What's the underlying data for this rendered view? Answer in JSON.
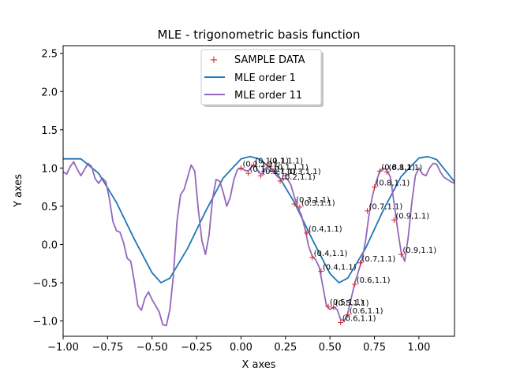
{
  "chart_data": {
    "type": "scatter",
    "title": "MLE - trigonometric basis function",
    "xlabel": "X axes",
    "ylabel": "Y axes",
    "xlim": [
      -1.0,
      1.2
    ],
    "ylim": [
      -1.2,
      2.6
    ],
    "xticks": [
      "−1.00",
      "−0.75",
      "−0.50",
      "−0.25",
      "0.00",
      "0.25",
      "0.50",
      "0.75",
      "1.00"
    ],
    "yticks": [
      "−1.0",
      "−0.5",
      "0.0",
      "0.5",
      "1.0",
      "1.5",
      "2.0",
      "2.5"
    ],
    "legend_position": "top-center",
    "legend": [
      "SAMPLE DATA",
      "MLE order 1",
      "MLE order 11"
    ],
    "colors": {
      "sample": "#d62728",
      "order1": "#1f77b4",
      "order11": "#9467bd"
    },
    "series": [
      {
        "name": "SAMPLE DATA",
        "points": [
          {
            "x": 0.0,
            "y": 1.0,
            "label": "(0.1,1.1)"
          },
          {
            "x": 0.04,
            "y": 0.93,
            "label": "(0.1,1.1)"
          },
          {
            "x": 0.07,
            "y": 1.04,
            "label": "(0.1,1.1)"
          },
          {
            "x": 0.11,
            "y": 0.9,
            "label": "(0.1,1.1)"
          },
          {
            "x": 0.15,
            "y": 1.04,
            "label": "(0.1,1.1)"
          },
          {
            "x": 0.18,
            "y": 0.96,
            "label": "(0.1,1.1)"
          },
          {
            "x": 0.22,
            "y": 0.83,
            "label": "(0.2,1.1)"
          },
          {
            "x": 0.25,
            "y": 0.9,
            "label": "(0.3,1.1)"
          },
          {
            "x": 0.3,
            "y": 0.53,
            "label": "(0.3,1.1)"
          },
          {
            "x": 0.33,
            "y": 0.49,
            "label": "(0.3,1.1)"
          },
          {
            "x": 0.37,
            "y": 0.15,
            "label": "(0.4,1.1)"
          },
          {
            "x": 0.4,
            "y": -0.17,
            "label": "(0.4,1.1)"
          },
          {
            "x": 0.45,
            "y": -0.35,
            "label": "(0.4,1.1)"
          },
          {
            "x": 0.49,
            "y": -0.81,
            "label": "(0.5,1.1)"
          },
          {
            "x": 0.52,
            "y": -0.82,
            "label": "(0.5,1.1)"
          },
          {
            "x": 0.56,
            "y": -1.02,
            "label": "(0.6,1.1)"
          },
          {
            "x": 0.6,
            "y": -0.92,
            "label": "(0.6,1.1)"
          },
          {
            "x": 0.64,
            "y": -0.52,
            "label": "(0.6,1.1)"
          },
          {
            "x": 0.67,
            "y": -0.24,
            "label": "(0.7,1.1)"
          },
          {
            "x": 0.71,
            "y": 0.44,
            "label": "(0.7,1.1)"
          },
          {
            "x": 0.75,
            "y": 0.75,
            "label": "(0.8,1.1)"
          },
          {
            "x": 0.78,
            "y": 0.96,
            "label": "(0.8,1.1)"
          },
          {
            "x": 0.82,
            "y": 0.95,
            "label": "(0.8,1.1)"
          },
          {
            "x": 0.86,
            "y": 0.32,
            "label": "(0.9,1.1)"
          },
          {
            "x": 0.9,
            "y": -0.13,
            "label": "(0.9,1.1)"
          }
        ]
      },
      {
        "name": "MLE order 1",
        "x": [
          -1.0,
          -0.9,
          -0.8,
          -0.7,
          -0.6,
          -0.5,
          -0.45,
          -0.4,
          -0.3,
          -0.2,
          -0.1,
          0.0,
          0.05,
          0.1,
          0.2,
          0.3,
          0.4,
          0.5,
          0.55,
          0.6,
          0.7,
          0.8,
          0.9,
          1.0,
          1.05,
          1.1,
          1.2
        ],
        "y": [
          1.12,
          1.12,
          0.93,
          0.55,
          0.07,
          -0.37,
          -0.5,
          -0.44,
          -0.05,
          0.43,
          0.87,
          1.12,
          1.15,
          1.12,
          0.94,
          0.55,
          0.07,
          -0.38,
          -0.5,
          -0.44,
          -0.05,
          0.45,
          0.89,
          1.13,
          1.15,
          1.11,
          0.82
        ]
      },
      {
        "name": "MLE order 11",
        "x": [
          -1.0,
          -0.98,
          -0.96,
          -0.94,
          -0.92,
          -0.9,
          -0.88,
          -0.86,
          -0.84,
          -0.82,
          -0.8,
          -0.78,
          -0.76,
          -0.74,
          -0.72,
          -0.7,
          -0.68,
          -0.66,
          -0.64,
          -0.62,
          -0.6,
          -0.58,
          -0.56,
          -0.54,
          -0.52,
          -0.5,
          -0.48,
          -0.46,
          -0.44,
          -0.42,
          -0.4,
          -0.38,
          -0.36,
          -0.34,
          -0.32,
          -0.3,
          -0.28,
          -0.26,
          -0.24,
          -0.22,
          -0.2,
          -0.18,
          -0.16,
          -0.14,
          -0.12,
          -0.1,
          -0.08,
          -0.06,
          -0.04,
          -0.02,
          0.0,
          0.02,
          0.04,
          0.06,
          0.08,
          0.1,
          0.12,
          0.14,
          0.16,
          0.18,
          0.2,
          0.22,
          0.24,
          0.26,
          0.28,
          0.3,
          0.32,
          0.34,
          0.36,
          0.38,
          0.4,
          0.42,
          0.44,
          0.46,
          0.48,
          0.5,
          0.52,
          0.54,
          0.56,
          0.58,
          0.6,
          0.62,
          0.64,
          0.66,
          0.68,
          0.7,
          0.72,
          0.74,
          0.76,
          0.78,
          0.8,
          0.82,
          0.84,
          0.86,
          0.88,
          0.9,
          0.92,
          0.94,
          0.96,
          0.98,
          1.0,
          1.02,
          1.04,
          1.06,
          1.08,
          1.1,
          1.12,
          1.14,
          1.16,
          1.18,
          1.2
        ],
        "y": [
          0.95,
          0.92,
          1.02,
          1.08,
          0.98,
          0.9,
          0.98,
          1.06,
          1.02,
          0.86,
          0.8,
          0.87,
          0.82,
          0.6,
          0.3,
          0.18,
          0.16,
          0.02,
          -0.18,
          -0.22,
          -0.48,
          -0.8,
          -0.86,
          -0.7,
          -0.62,
          -0.72,
          -0.8,
          -0.88,
          -1.05,
          -1.06,
          -0.85,
          -0.4,
          0.3,
          0.65,
          0.72,
          0.88,
          1.04,
          0.96,
          0.46,
          0.05,
          -0.13,
          0.12,
          0.6,
          0.85,
          0.83,
          0.68,
          0.5,
          0.62,
          0.85,
          0.98,
          1.0,
          0.97,
          0.96,
          1.02,
          1.04,
          0.94,
          0.92,
          1.0,
          1.02,
          0.96,
          0.9,
          0.86,
          0.86,
          0.86,
          0.78,
          0.62,
          0.48,
          0.38,
          0.2,
          -0.02,
          -0.15,
          -0.2,
          -0.3,
          -0.55,
          -0.8,
          -0.85,
          -0.82,
          -0.85,
          -0.98,
          -1.0,
          -0.9,
          -0.7,
          -0.5,
          -0.35,
          -0.2,
          0.05,
          0.4,
          0.65,
          0.82,
          0.96,
          1.0,
          0.97,
          0.88,
          0.55,
          0.2,
          -0.1,
          -0.22,
          0.1,
          0.55,
          0.9,
          1.0,
          0.92,
          0.9,
          1.0,
          1.06,
          1.05,
          0.95,
          0.88,
          0.85,
          0.82,
          0.8
        ]
      }
    ]
  }
}
